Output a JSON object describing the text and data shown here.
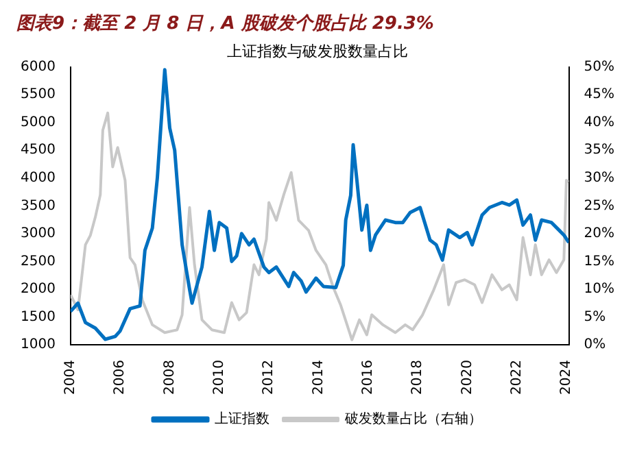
{
  "chart_data": {
    "type": "line",
    "title": "图表9：截至 2 月 8 日，A 股破发个股占比 29.3%",
    "subtitle": "上证指数与破发股数量占比",
    "xlim": [
      2004,
      2024.1
    ],
    "xticks": [
      2004,
      2006,
      2008,
      2010,
      2012,
      2014,
      2016,
      2018,
      2020,
      2022,
      2024
    ],
    "ylim": [
      1000,
      6000
    ],
    "yticks": [
      1000,
      1500,
      2000,
      2500,
      3000,
      3500,
      4000,
      4500,
      5000,
      5500,
      6000
    ],
    "y2lim": [
      0,
      50
    ],
    "y2ticks": [
      {
        "value": 0,
        "label": "0%"
      },
      {
        "value": 5,
        "label": "5%"
      },
      {
        "value": 10,
        "label": "10%"
      },
      {
        "value": 15,
        "label": "15%"
      },
      {
        "value": 20,
        "label": "20%"
      },
      {
        "value": 25,
        "label": "25%"
      },
      {
        "value": 30,
        "label": "30%"
      },
      {
        "value": 35,
        "label": "35%"
      },
      {
        "value": 40,
        "label": "40%"
      },
      {
        "value": 45,
        "label": "45%"
      },
      {
        "value": 50,
        "label": "50%"
      }
    ],
    "legend": "bottom",
    "grid": false,
    "series": [
      {
        "name": "上证指数",
        "color": "#0070c0",
        "x": [
          2004,
          2004.3,
          2004.6,
          2005,
          2005.4,
          2005.8,
          2006,
          2006.4,
          2006.8,
          2007,
          2007.3,
          2007.5,
          2007.8,
          2008,
          2008.2,
          2008.5,
          2008.8,
          2008.9,
          2009.3,
          2009.6,
          2009.8,
          2010,
          2010.3,
          2010.5,
          2010.7,
          2010.9,
          2011.2,
          2011.4,
          2011.8,
          2012,
          2012.3,
          2012.8,
          2013,
          2013.3,
          2013.5,
          2013.9,
          2014.2,
          2014.7,
          2015,
          2015.1,
          2015.3,
          2015.4,
          2015.55,
          2015.75,
          2015.95,
          2016.1,
          2016.3,
          2016.7,
          2017.1,
          2017.4,
          2017.7,
          2018.1,
          2018.5,
          2018.75,
          2019,
          2019.25,
          2019.7,
          2020,
          2020.2,
          2020.6,
          2020.9,
          2021.4,
          2021.7,
          2022,
          2022.25,
          2022.55,
          2022.75,
          2023,
          2023.4,
          2023.7,
          2023.9,
          2024.1
        ],
        "values": [
          1600,
          1750,
          1400,
          1300,
          1100,
          1150,
          1250,
          1650,
          1700,
          2700,
          3100,
          4000,
          5950,
          4900,
          4500,
          2800,
          2000,
          1750,
          2400,
          3400,
          2700,
          3200,
          3100,
          2500,
          2600,
          3000,
          2800,
          2900,
          2400,
          2300,
          2400,
          2050,
          2300,
          2150,
          1950,
          2200,
          2050,
          2030,
          2430,
          3245,
          3690,
          4600,
          3960,
          3065,
          3510,
          2700,
          2975,
          3245,
          3200,
          3200,
          3380,
          3470,
          2885,
          2800,
          2525,
          3065,
          2930,
          3020,
          2800,
          3335,
          3470,
          3560,
          3515,
          3605,
          3155,
          3335,
          2885,
          3245,
          3200,
          3065,
          2975,
          2840
        ]
      },
      {
        "name": "破发数量占比（右轴）",
        "color": "#c8c8c8",
        "axis": "y2",
        "x": [
          2004,
          2004.3,
          2004.6,
          2004.8,
          2005,
          2005.2,
          2005.3,
          2005.5,
          2005.7,
          2005.9,
          2006.2,
          2006.4,
          2006.6,
          2006.9,
          2007.3,
          2007.8,
          2008.3,
          2008.5,
          2008.8,
          2009,
          2009.3,
          2009.7,
          2010.2,
          2010.5,
          2010.8,
          2011.1,
          2011.4,
          2011.6,
          2011.9,
          2012,
          2012.3,
          2012.6,
          2012.9,
          2013.2,
          2013.6,
          2013.9,
          2014.3,
          2014.6,
          2014.9,
          2015.35,
          2015.65,
          2015.95,
          2016.15,
          2016.6,
          2017.1,
          2017.5,
          2017.8,
          2018.2,
          2018.65,
          2019.05,
          2019.25,
          2019.55,
          2019.9,
          2020.3,
          2020.6,
          2021,
          2021.4,
          2021.7,
          2022,
          2022.25,
          2022.55,
          2022.75,
          2023,
          2023.3,
          2023.6,
          2023.9,
          2024,
          2024.1
        ],
        "values": [
          9,
          6.3,
          18,
          19.7,
          23,
          27,
          38.6,
          41.7,
          32,
          35.5,
          29.6,
          15.7,
          14.4,
          8,
          3.6,
          2.2,
          2.7,
          5.4,
          24.7,
          14.4,
          4.5,
          2.7,
          2.2,
          7.6,
          4.5,
          5.8,
          14.4,
          12.6,
          19,
          25.6,
          22.4,
          27,
          31,
          22.4,
          20.6,
          17,
          14.4,
          10.3,
          7.1,
          0.9,
          4.5,
          1.8,
          5.4,
          3.6,
          2.2,
          3.6,
          2.7,
          5.4,
          9.9,
          14.4,
          7.2,
          11.2,
          11.7,
          10.8,
          7.6,
          12.6,
          9.9,
          10.8,
          8.1,
          19.3,
          12.6,
          18,
          12.6,
          15.3,
          13,
          15.3,
          29.6,
          29.3
        ]
      }
    ]
  }
}
